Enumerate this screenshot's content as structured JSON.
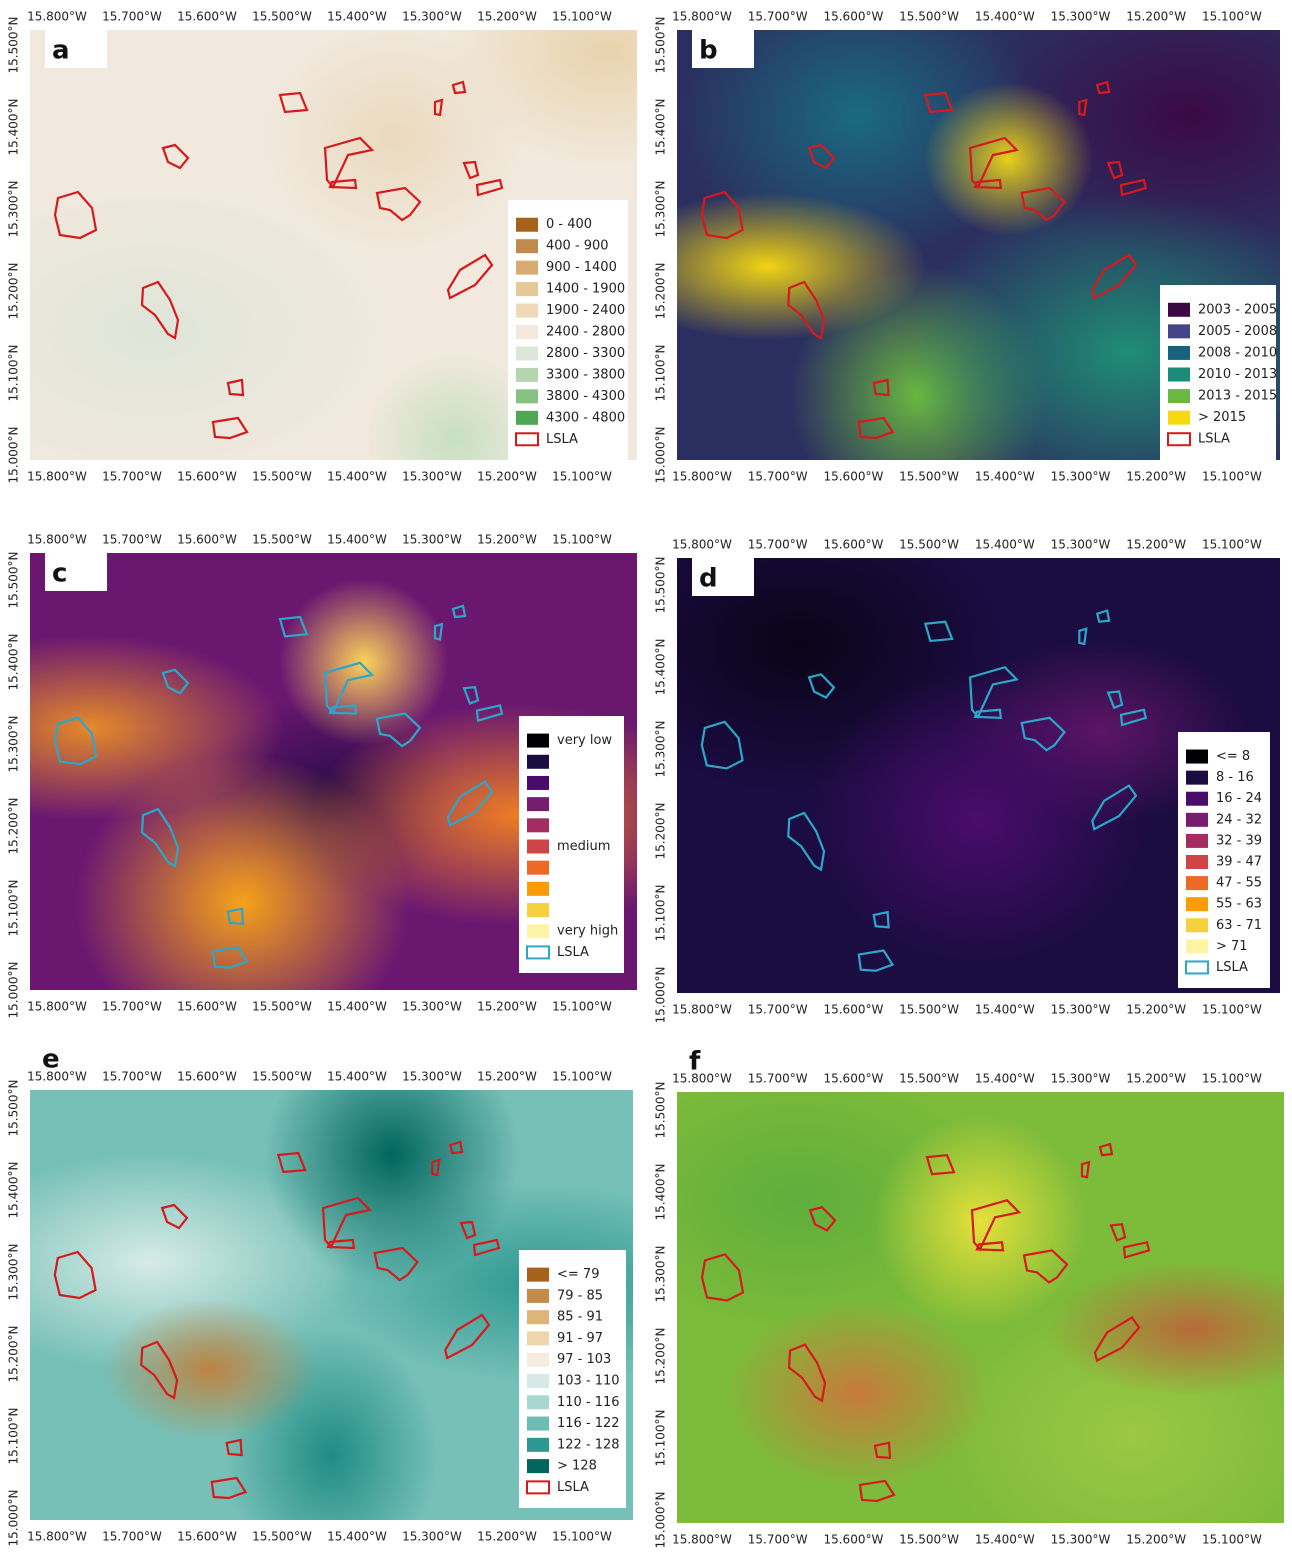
{
  "panels": [
    {
      "letter": "a",
      "lon_labels": [
        "15.800°W",
        "15.700°W",
        "15.600°W",
        "15.500°W",
        "15.400°W",
        "15.300°W",
        "15.200°W",
        "15.100°W"
      ],
      "lat_labels": [
        "15.500°N",
        "15.400°N",
        "15.300°N",
        "15.200°N",
        "15.100°N",
        "15.000°N"
      ],
      "outline_color": "#d7191c",
      "legend": [
        {
          "label": "0 - 400",
          "color": "#a6611a"
        },
        {
          "label": "400 - 900",
          "color": "#bf8a4c"
        },
        {
          "label": "900 - 1400",
          "color": "#d6ac72"
        },
        {
          "label": "1400 - 1900",
          "color": "#e6c796"
        },
        {
          "label": "1900 - 2400",
          "color": "#efd9b7"
        },
        {
          "label": "2400 - 2800",
          "color": "#f4e8dc"
        },
        {
          "label": "2800 - 3300",
          "color": "#dde6d8"
        },
        {
          "label": "3300 - 3800",
          "color": "#b5d5b0"
        },
        {
          "label": "3800 - 4300",
          "color": "#87c083"
        },
        {
          "label": "4300 - 4800",
          "color": "#4fa653"
        },
        {
          "label": "LSLA",
          "color": "#d7191c",
          "outline": true
        }
      ]
    },
    {
      "letter": "b",
      "lon_labels": [
        "15.800°W",
        "15.700°W",
        "15.600°W",
        "15.500°W",
        "15.400°W",
        "15.300°W",
        "15.200°W",
        "15.100°W"
      ],
      "lat_labels": [
        "15.500°N",
        "15.400°N",
        "15.300°N",
        "15.200°N",
        "15.100°N",
        "15.000°N"
      ],
      "outline_color": "#d7191c",
      "legend": [
        {
          "label": "2003 - 2005",
          "color": "#3b0a45"
        },
        {
          "label": "2005 - 2008",
          "color": "#45458a"
        },
        {
          "label": "2008 - 2010",
          "color": "#15637f"
        },
        {
          "label": "2010 - 2013",
          "color": "#1b8c78"
        },
        {
          "label": "2013 - 2015",
          "color": "#6ab840"
        },
        {
          "label": "> 2015",
          "color": "#f6d90f"
        },
        {
          "label": "LSLA",
          "color": "#d7191c",
          "outline": true
        }
      ]
    },
    {
      "letter": "c",
      "lon_labels": [
        "15.800°W",
        "15.700°W",
        "15.600°W",
        "15.500°W",
        "15.400°W",
        "15.300°W",
        "15.200°W",
        "15.100°W"
      ],
      "lat_labels": [
        "15.500°N",
        "15.400°N",
        "15.300°N",
        "15.200°N",
        "15.100°N",
        "15.000°N"
      ],
      "outline_color": "#2aa7c9",
      "legend": [
        {
          "label": "very low",
          "color": "#000004"
        },
        {
          "label": null,
          "color": "#1b0c41"
        },
        {
          "label": null,
          "color": "#4a0c6b"
        },
        {
          "label": null,
          "color": "#781c6d"
        },
        {
          "label": null,
          "color": "#a52c60"
        },
        {
          "label": "medium",
          "color": "#cf4446"
        },
        {
          "label": null,
          "color": "#ed6925"
        },
        {
          "label": null,
          "color": "#fb9b06"
        },
        {
          "label": null,
          "color": "#f7d13d"
        },
        {
          "label": "very high",
          "color": "#fcf4a3"
        },
        {
          "label": "LSLA",
          "color": "#2aa7c9",
          "outline": true
        }
      ]
    },
    {
      "letter": "d",
      "lon_labels": [
        "15.800°W",
        "15.700°W",
        "15.600°W",
        "15.500°W",
        "15.400°W",
        "15.300°W",
        "15.200°W",
        "15.100°W"
      ],
      "lat_labels": [
        "15.500°N",
        "15.400°N",
        "15.300°N",
        "15.200°N",
        "15.100°N",
        "15.000°N"
      ],
      "outline_color": "#2aa7c9",
      "legend": [
        {
          "label": "<= 8",
          "color": "#000004"
        },
        {
          "label": "8 - 16",
          "color": "#1b0c41"
        },
        {
          "label": "16 - 24",
          "color": "#4a0c6b"
        },
        {
          "label": "24 - 32",
          "color": "#781c6d"
        },
        {
          "label": "32 - 39",
          "color": "#a52c60"
        },
        {
          "label": "39 - 47",
          "color": "#cf4446"
        },
        {
          "label": "47 - 55",
          "color": "#ed6925"
        },
        {
          "label": "55 - 63",
          "color": "#fb9b06"
        },
        {
          "label": "63 - 71",
          "color": "#f7d13d"
        },
        {
          "label": "> 71",
          "color": "#fcf4a3"
        },
        {
          "label": "LSLA",
          "color": "#2aa7c9",
          "outline": true
        }
      ]
    },
    {
      "letter": "e",
      "lon_labels": [
        "15.800°W",
        "15.700°W",
        "15.600°W",
        "15.500°W",
        "15.400°W",
        "15.300°W",
        "15.200°W",
        "15.100°W"
      ],
      "lat_labels": [
        "15.500°N",
        "15.400°N",
        "15.300°N",
        "15.200°N",
        "15.100°N",
        "15.000°N"
      ],
      "outline_color": "#d7191c",
      "legend": [
        {
          "label": "<= 79",
          "color": "#a6611a"
        },
        {
          "label": "79 - 85",
          "color": "#c48a4a"
        },
        {
          "label": "85 - 91",
          "color": "#dfb477"
        },
        {
          "label": "91 - 97",
          "color": "#efd5aa"
        },
        {
          "label": "97 - 103",
          "color": "#f5ebdf"
        },
        {
          "label": "103 - 110",
          "color": "#d7e9e6"
        },
        {
          "label": "110 - 116",
          "color": "#a8d6d0"
        },
        {
          "label": "116 - 122",
          "color": "#6cbcb4"
        },
        {
          "label": "122 - 128",
          "color": "#2c9891"
        },
        {
          "label": "> 128",
          "color": "#01665e"
        },
        {
          "label": "LSLA",
          "color": "#d7191c",
          "outline": true
        }
      ]
    },
    {
      "letter": "f",
      "lon_labels": [
        "15.800°W",
        "15.700°W",
        "15.600°W",
        "15.500°W",
        "15.400°W",
        "15.300°W",
        "15.200°W",
        "15.100°W"
      ],
      "lat_labels": [
        "15.500°N",
        "15.400°N",
        "15.300°N",
        "15.200°N",
        "15.100°N",
        "15.000°N"
      ],
      "outline_color": "#d7191c",
      "legend": []
    }
  ]
}
